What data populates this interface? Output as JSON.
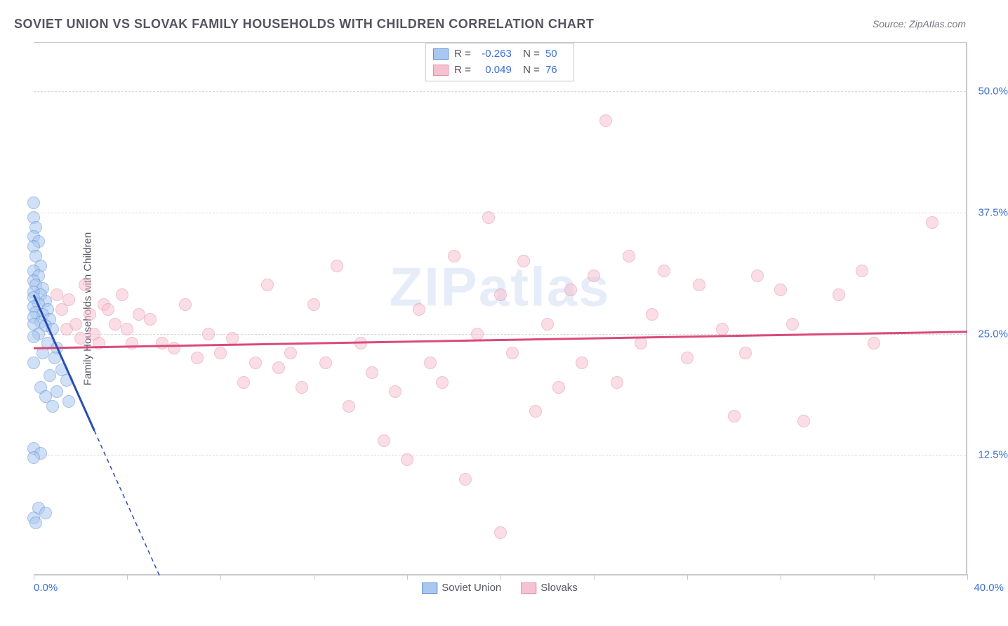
{
  "title": "SOVIET UNION VS SLOVAK FAMILY HOUSEHOLDS WITH CHILDREN CORRELATION CHART",
  "source": "Source: ZipAtlas.com",
  "watermark": "ZIPatlas",
  "ylabel": "Family Households with Children",
  "chart": {
    "type": "scatter",
    "xlim": [
      0,
      40
    ],
    "ylim": [
      0,
      55
    ],
    "xaxis_min_label": "0.0%",
    "xaxis_max_label": "40.0%",
    "ytick_labels": [
      {
        "v": 12.5,
        "label": "12.5%"
      },
      {
        "v": 25.0,
        "label": "25.0%"
      },
      {
        "v": 37.5,
        "label": "37.5%"
      },
      {
        "v": 50.0,
        "label": "50.0%"
      }
    ],
    "xtick_positions": [
      0,
      4,
      8,
      12,
      16,
      20,
      24,
      28,
      32,
      36,
      40
    ],
    "background_color": "#ffffff",
    "grid_color": "#d8d8e0",
    "axis_color": "#c8c8d0",
    "axis_label_color": "#3b6fd6",
    "marker_radius": 9,
    "marker_border": 1.5,
    "marker_opacity": 0.55,
    "trend_line_width": 3,
    "trend_dash_width": 1.5,
    "series": [
      {
        "name": "Soviet Union",
        "fill": "#aac7ef",
        "stroke": "#5f8fd8",
        "line_color": "#2a4fb0",
        "R": "-0.263",
        "N": "50",
        "trend": {
          "x1": 0,
          "y1": 29,
          "x2": 2.6,
          "y2": 15
        },
        "trend_ext": {
          "x1": 2.6,
          "y1": 15,
          "x2": 5.4,
          "y2": 0
        },
        "points": [
          [
            0.0,
            38.5
          ],
          [
            0.0,
            37.0
          ],
          [
            0.1,
            36.0
          ],
          [
            0.0,
            35.0
          ],
          [
            0.2,
            34.5
          ],
          [
            0.0,
            34.0
          ],
          [
            0.1,
            33.0
          ],
          [
            0.3,
            32.0
          ],
          [
            0.0,
            31.5
          ],
          [
            0.2,
            31.0
          ],
          [
            0.0,
            30.5
          ],
          [
            0.1,
            30.0
          ],
          [
            0.4,
            29.7
          ],
          [
            0.0,
            29.3
          ],
          [
            0.3,
            29.0
          ],
          [
            0.0,
            28.7
          ],
          [
            0.5,
            28.4
          ],
          [
            0.2,
            28.1
          ],
          [
            0.0,
            27.8
          ],
          [
            0.6,
            27.5
          ],
          [
            0.1,
            27.2
          ],
          [
            0.4,
            27.0
          ],
          [
            0.0,
            26.7
          ],
          [
            0.7,
            26.5
          ],
          [
            0.3,
            26.2
          ],
          [
            0.0,
            26.0
          ],
          [
            0.5,
            25.8
          ],
          [
            0.8,
            25.5
          ],
          [
            0.2,
            25.0
          ],
          [
            0.0,
            24.7
          ],
          [
            0.6,
            24.0
          ],
          [
            1.0,
            23.5
          ],
          [
            0.4,
            23.0
          ],
          [
            0.9,
            22.5
          ],
          [
            0.0,
            22.0
          ],
          [
            1.2,
            21.3
          ],
          [
            0.7,
            20.7
          ],
          [
            1.4,
            20.2
          ],
          [
            0.3,
            19.5
          ],
          [
            1.0,
            19.0
          ],
          [
            0.5,
            18.5
          ],
          [
            1.5,
            18.0
          ],
          [
            0.8,
            17.5
          ],
          [
            0.0,
            13.2
          ],
          [
            0.3,
            12.7
          ],
          [
            0.0,
            12.2
          ],
          [
            0.2,
            7.0
          ],
          [
            0.0,
            6.0
          ],
          [
            0.5,
            6.5
          ],
          [
            0.1,
            5.5
          ]
        ]
      },
      {
        "name": "Slovaks",
        "fill": "#f6c2d1",
        "stroke": "#e28fa8",
        "line_color": "#d94a7a",
        "R": "0.049",
        "N": "76",
        "trend": {
          "x1": 0,
          "y1": 23.5,
          "x2": 40,
          "y2": 25.2
        },
        "points": [
          [
            1.0,
            29.0
          ],
          [
            1.2,
            27.5
          ],
          [
            1.5,
            28.5
          ],
          [
            1.4,
            25.5
          ],
          [
            1.8,
            26.0
          ],
          [
            2.0,
            24.5
          ],
          [
            2.2,
            30.0
          ],
          [
            2.4,
            27.0
          ],
          [
            2.6,
            25.0
          ],
          [
            2.8,
            24.0
          ],
          [
            3.0,
            28.0
          ],
          [
            3.2,
            27.5
          ],
          [
            3.5,
            26.0
          ],
          [
            3.8,
            29.0
          ],
          [
            4.0,
            25.5
          ],
          [
            4.2,
            24.0
          ],
          [
            4.5,
            27.0
          ],
          [
            5.0,
            26.5
          ],
          [
            5.5,
            24.0
          ],
          [
            6.0,
            23.5
          ],
          [
            6.5,
            28.0
          ],
          [
            7.0,
            22.5
          ],
          [
            7.5,
            25.0
          ],
          [
            8.0,
            23.0
          ],
          [
            8.5,
            24.5
          ],
          [
            9.0,
            20.0
          ],
          [
            9.5,
            22.0
          ],
          [
            10.0,
            30.0
          ],
          [
            10.5,
            21.5
          ],
          [
            11.0,
            23.0
          ],
          [
            11.5,
            19.5
          ],
          [
            12.0,
            28.0
          ],
          [
            12.5,
            22.0
          ],
          [
            13.0,
            32.0
          ],
          [
            13.5,
            17.5
          ],
          [
            14.0,
            24.0
          ],
          [
            14.5,
            21.0
          ],
          [
            15.0,
            14.0
          ],
          [
            15.5,
            19.0
          ],
          [
            16.0,
            12.0
          ],
          [
            16.5,
            27.5
          ],
          [
            17.0,
            22.0
          ],
          [
            17.5,
            20.0
          ],
          [
            18.0,
            33.0
          ],
          [
            18.5,
            10.0
          ],
          [
            19.0,
            25.0
          ],
          [
            19.5,
            37.0
          ],
          [
            20.0,
            4.5
          ],
          [
            20.0,
            29.0
          ],
          [
            20.5,
            23.0
          ],
          [
            21.0,
            32.5
          ],
          [
            21.5,
            17.0
          ],
          [
            22.0,
            26.0
          ],
          [
            22.5,
            19.5
          ],
          [
            23.0,
            29.5
          ],
          [
            23.5,
            22.0
          ],
          [
            24.0,
            31.0
          ],
          [
            24.5,
            47.0
          ],
          [
            25.0,
            20.0
          ],
          [
            25.5,
            33.0
          ],
          [
            26.0,
            24.0
          ],
          [
            26.5,
            27.0
          ],
          [
            27.0,
            31.5
          ],
          [
            28.0,
            22.5
          ],
          [
            28.5,
            30.0
          ],
          [
            29.5,
            25.5
          ],
          [
            30.0,
            16.5
          ],
          [
            30.5,
            23.0
          ],
          [
            31.0,
            31.0
          ],
          [
            32.0,
            29.5
          ],
          [
            32.5,
            26.0
          ],
          [
            33.0,
            16.0
          ],
          [
            34.5,
            29.0
          ],
          [
            35.5,
            31.5
          ],
          [
            38.5,
            36.5
          ],
          [
            36.0,
            24.0
          ]
        ]
      }
    ]
  },
  "legend": {
    "series1_label": "Soviet Union",
    "series2_label": "Slovaks"
  }
}
